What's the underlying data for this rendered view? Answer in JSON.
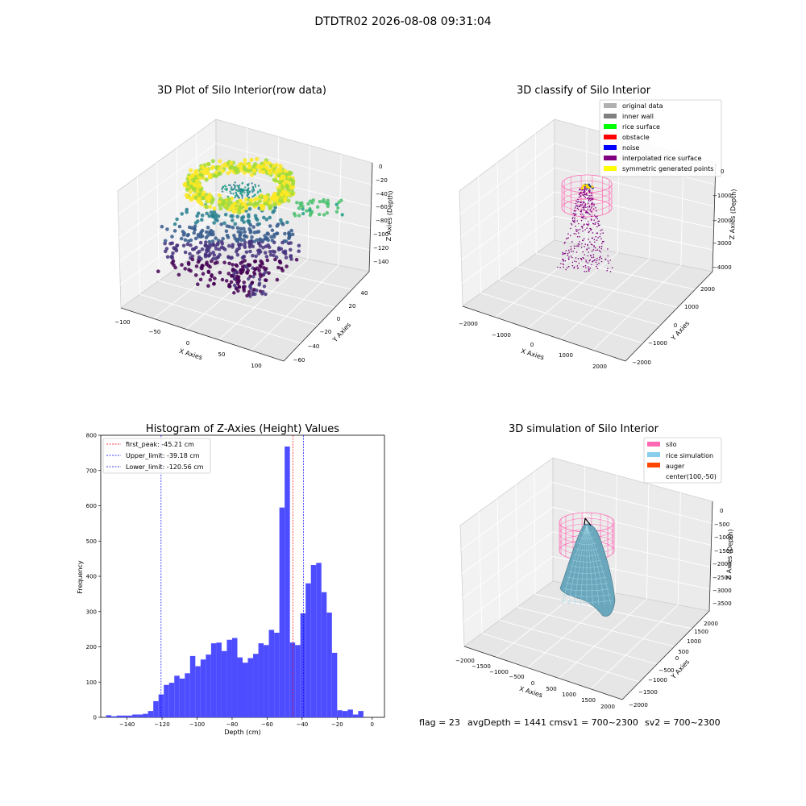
{
  "suptitle": "DTDTR02 2026-08-08 09:31:04",
  "status_line": {
    "flag": "flag = 23",
    "avg_depth": "avgDepth = 1441 cmsv1 = 700~2300",
    "sv2": "sv2 = 700~2300"
  },
  "chart_data": [
    {
      "type": "scatter",
      "title": "3D Plot of Silo Interior(row data)",
      "xlabel": "X Axies",
      "ylabel": "Y Axies",
      "zlabel": "Z Axies (Depth)",
      "xticks": [
        "−100",
        "−50",
        "0",
        "50",
        "100"
      ],
      "yticks": [
        "−60",
        "−40",
        "−20",
        "0",
        "20",
        "40"
      ],
      "zticks": [
        "0",
        "−20",
        "−40",
        "−60",
        "−80",
        "−100",
        "−120",
        "−140"
      ],
      "xlim": [
        -100,
        100
      ],
      "ylim": [
        -60,
        50
      ],
      "zlim": [
        -150,
        5
      ],
      "colormap": "viridis",
      "grid": true
    },
    {
      "type": "scatter",
      "title": "3D classify of Silo Interior",
      "xlabel": "X Axies",
      "ylabel": "Y Axies",
      "zlabel": "Z Axies (Depth)",
      "xticks": [
        "−2000",
        "−1000",
        "0",
        "1000",
        "2000"
      ],
      "yticks": [
        "−2000",
        "−1000",
        "0",
        "1000",
        "2000"
      ],
      "zticks": [
        "0",
        "−1000",
        "−2000",
        "−3000",
        "−4000"
      ],
      "legend_position": "top-right",
      "legend": [
        {
          "name": "original data",
          "color": "#b0b0b0"
        },
        {
          "name": "inner wall",
          "color": "#808080"
        },
        {
          "name": "rice surface",
          "color": "#00ff00"
        },
        {
          "name": "obstacle",
          "color": "#ff0000"
        },
        {
          "name": "noise",
          "color": "#0000ff"
        },
        {
          "name": "interpolated rice surface",
          "color": "#800080"
        },
        {
          "name": "symmetric generated points",
          "color": "#ffff00"
        }
      ],
      "grid": true
    },
    {
      "type": "bar",
      "title": "Histogram of Z-Axies (Height) Values",
      "xlabel": "Depth (cm)",
      "ylabel": "Frequency",
      "xlim": [
        -155,
        7
      ],
      "ylim": [
        0,
        800
      ],
      "xticks": [
        -140,
        -120,
        -100,
        -80,
        -60,
        -40,
        -20,
        0
      ],
      "yticks": [
        0,
        100,
        200,
        300,
        400,
        500,
        600,
        700,
        800
      ],
      "bin_start": -152,
      "bin_width": 3,
      "values": [
        6,
        3,
        5,
        5,
        5,
        8,
        8,
        10,
        18,
        46,
        65,
        92,
        98,
        118,
        110,
        125,
        174,
        145,
        164,
        178,
        210,
        212,
        188,
        220,
        225,
        170,
        155,
        168,
        180,
        210,
        205,
        248,
        240,
        595,
        768,
        212,
        205,
        295,
        380,
        432,
        438,
        355,
        297,
        183,
        20,
        18,
        22,
        8,
        18
      ],
      "bar_color": "#4d4dff",
      "vlines": [
        {
          "label": "first_peak: -45.21 cm",
          "x": -45.21,
          "color": "#ff0000"
        },
        {
          "label": "Upper_limit: -39.18 cm",
          "x": -39.18,
          "color": "#0000ff"
        },
        {
          "label": "Lower_limit: -120.56 cm",
          "x": -120.56,
          "color": "#0000ff"
        }
      ],
      "legend_position": "top-left"
    },
    {
      "type": "area",
      "title": "3D simulation of Silo Interior",
      "xlabel": "X Axies",
      "ylabel": "Y Axies",
      "zlabel": "Z Axies (Depth)",
      "xticks": [
        "−2000",
        "−1500",
        "−1000",
        "−500",
        "0",
        "500",
        "1000",
        "1500",
        "2000"
      ],
      "yticks": [
        "−2000",
        "−1500",
        "−1000",
        "−500",
        "0",
        "500",
        "1000",
        "1500",
        "2000"
      ],
      "zticks": [
        "0",
        "−500",
        "−1000",
        "−1500",
        "−2000",
        "−2500",
        "−3000",
        "−3500"
      ],
      "legend_position": "top-right",
      "legend": [
        {
          "name": "silo",
          "color": "#ff69b4"
        },
        {
          "name": "rice simulation",
          "color": "#87ceeb"
        },
        {
          "name": "auger",
          "color": "#ff4500"
        },
        {
          "name": "center(100,-50)",
          "color": ""
        }
      ],
      "grid": true
    }
  ]
}
